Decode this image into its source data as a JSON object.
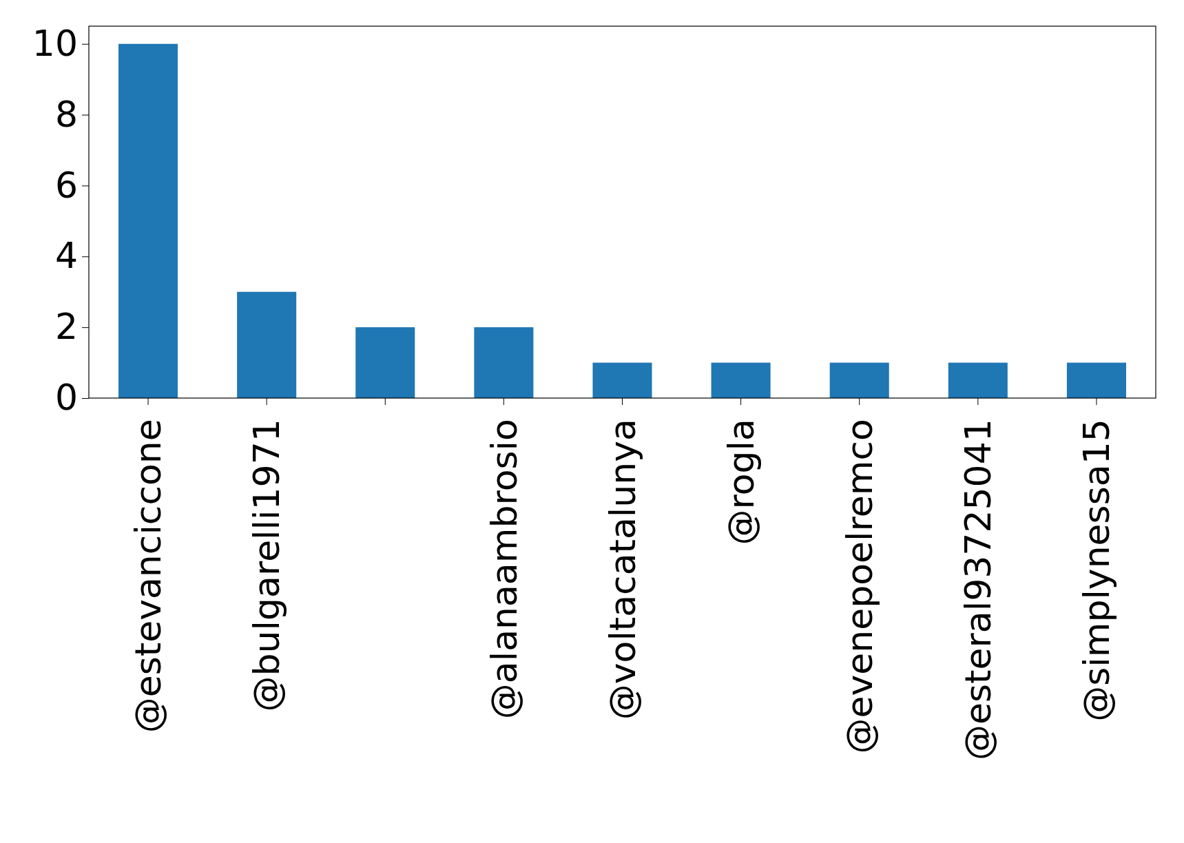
{
  "chart_data": {
    "type": "bar",
    "categories": [
      "@estevanciccone",
      "@bulgarelli1971",
      null,
      "@alanaambrosio",
      "@voltacatalunya",
      "@rogla",
      "@evenepoelremco",
      "@esteral93725041",
      "@simplynessa15"
    ],
    "values": [
      10,
      3,
      2,
      2,
      1,
      1,
      1,
      1,
      1
    ],
    "color": "#1f77b4",
    "ylim": [
      0,
      10.5
    ],
    "yticks": [
      0,
      2,
      4,
      6,
      8,
      10
    ],
    "grid": false
  }
}
